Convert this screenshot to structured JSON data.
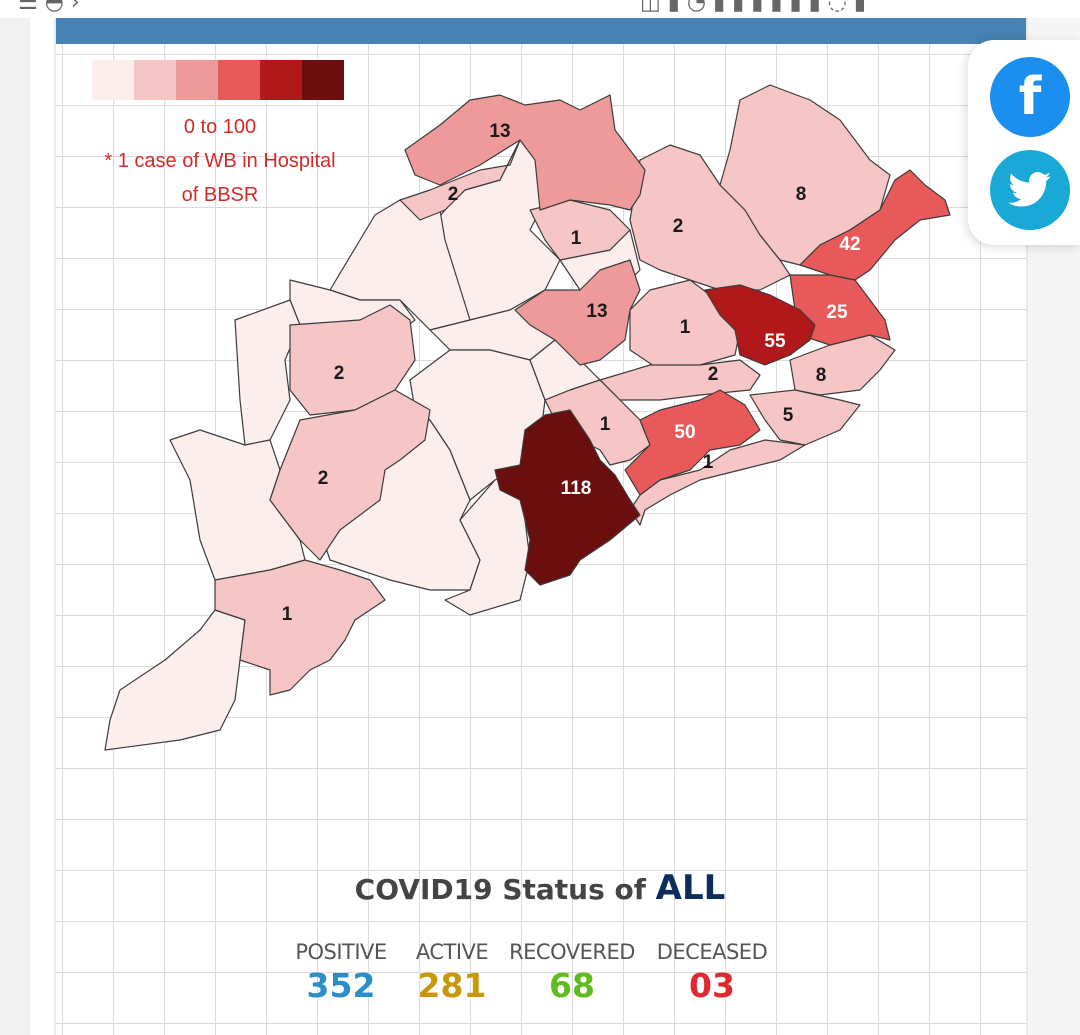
{
  "colors": {
    "header": "#4682b4",
    "facebook": "#1a8ff0",
    "twitter": "#1aa9d7",
    "positive": "#2a8fc7",
    "active": "#c8980c",
    "recovered": "#5fbe1e",
    "deceased": "#e0282e",
    "legend_text": "#d42a2a"
  },
  "legend": {
    "swatches": [
      "#fdeeee",
      "#f6c5c5",
      "#ef9a9a",
      "#e85a5a",
      "#b0181a",
      "#6b0e0e"
    ],
    "range": "0 to 100",
    "note_line1": "* 1 case of WB in Hospital",
    "note_line2": "of BBSR"
  },
  "map": {
    "district_counts": [
      "13",
      "2",
      "1",
      "2",
      "8",
      "42",
      "13",
      "1",
      "25",
      "55",
      "2",
      "8",
      "2",
      "1",
      "50",
      "5",
      "1",
      "118",
      "2",
      "1"
    ]
  },
  "share": {
    "facebook_icon": "facebook-icon",
    "twitter_icon": "twitter-icon",
    "facebook_glyph": "f"
  },
  "status": {
    "prefix": "COVID19 Status of",
    "region": "ALL",
    "stats": [
      {
        "label": "POSITIVE",
        "value": "352"
      },
      {
        "label": "ACTIVE",
        "value": "281"
      },
      {
        "label": "RECOVERED",
        "value": "68"
      },
      {
        "label": "DECEASED",
        "value": "03"
      }
    ]
  }
}
